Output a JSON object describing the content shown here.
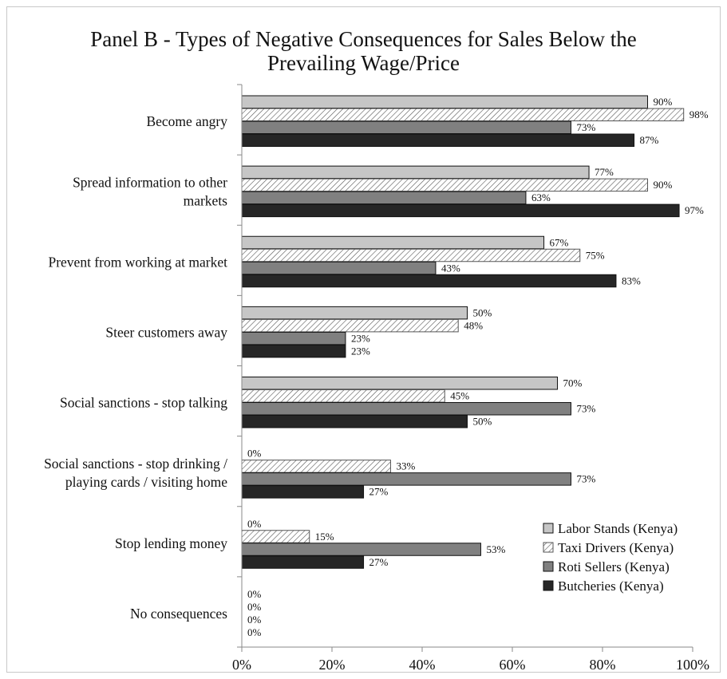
{
  "chart_data": {
    "type": "bar",
    "orientation": "horizontal",
    "title_line1": "Panel B - Types of Negative Consequences for Sales Below the",
    "title_line2": "Prevailing Wage/Price",
    "categories": [
      [
        "Become angry"
      ],
      [
        "Spread information to other",
        "markets"
      ],
      [
        "Prevent from working at market"
      ],
      [
        "Steer customers away"
      ],
      [
        "Social sanctions - stop talking"
      ],
      [
        "Social sanctions - stop drinking /",
        "playing cards / visiting home"
      ],
      [
        "Stop lending money"
      ],
      [
        "No consequences"
      ]
    ],
    "series": [
      {
        "name": "Labor Stands (Kenya)",
        "values": [
          90,
          77,
          67,
          50,
          70,
          0,
          0,
          0
        ],
        "color": "#c6c6c6",
        "pattern": "solid"
      },
      {
        "name": "Taxi Drivers (Kenya)",
        "values": [
          98,
          90,
          75,
          48,
          45,
          33,
          15,
          0
        ],
        "color": "#ffffff",
        "pattern": "diagonal-hatch"
      },
      {
        "name": "Roti Sellers (Kenya)",
        "values": [
          73,
          63,
          43,
          23,
          73,
          73,
          53,
          0
        ],
        "color": "#808080",
        "pattern": "solid"
      },
      {
        "name": "Butcheries (Kenya)",
        "values": [
          87,
          97,
          83,
          23,
          50,
          27,
          27,
          0
        ],
        "color": "#262626",
        "pattern": "solid"
      }
    ],
    "value_suffix": "%",
    "xlim": [
      0,
      100
    ],
    "xticks": [
      "0%",
      "20%",
      "40%",
      "60%",
      "80%",
      "100%"
    ],
    "grid": false,
    "legend_position": "lower-right"
  }
}
